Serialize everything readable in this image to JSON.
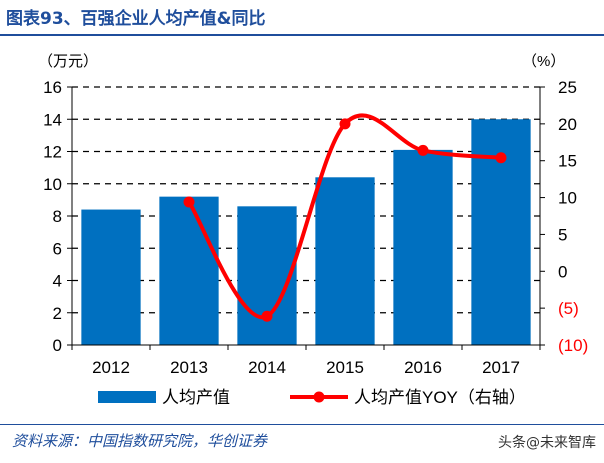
{
  "title": "图表93、百强企业人均产值&同比",
  "source": "资料来源：中国指数研究院，华创证券",
  "watermark": "头条@未来智库",
  "chart_data": {
    "type": "bar+line",
    "categories": [
      "2012",
      "2013",
      "2014",
      "2015",
      "2016",
      "2017"
    ],
    "left_axis": {
      "label": "（万元）",
      "range": [
        0,
        16
      ],
      "ticks": [
        0,
        2,
        4,
        6,
        8,
        10,
        12,
        14,
        16
      ]
    },
    "right_axis": {
      "label": "（%）",
      "range": [
        -10,
        25
      ],
      "ticks": [
        -10,
        -5,
        0,
        5,
        10,
        15,
        20,
        25
      ],
      "tick_labels": [
        "(10)",
        "(5)",
        "0",
        "5",
        "10",
        "15",
        "20",
        "25"
      ],
      "negative_color": "#ff0000"
    },
    "series": [
      {
        "name": "人均产值",
        "type": "bar",
        "axis": "left",
        "color": "#0070c0",
        "values": [
          8.4,
          9.2,
          8.6,
          10.4,
          12.1,
          14.0
        ]
      },
      {
        "name": "人均产值YOY（右轴）",
        "type": "line",
        "axis": "right",
        "color": "#ff0000",
        "smooth": true,
        "values": [
          null,
          9.4,
          -6.1,
          20.0,
          16.4,
          15.4
        ]
      }
    ],
    "grid": "horizontal dashed",
    "legend": "bottom"
  }
}
